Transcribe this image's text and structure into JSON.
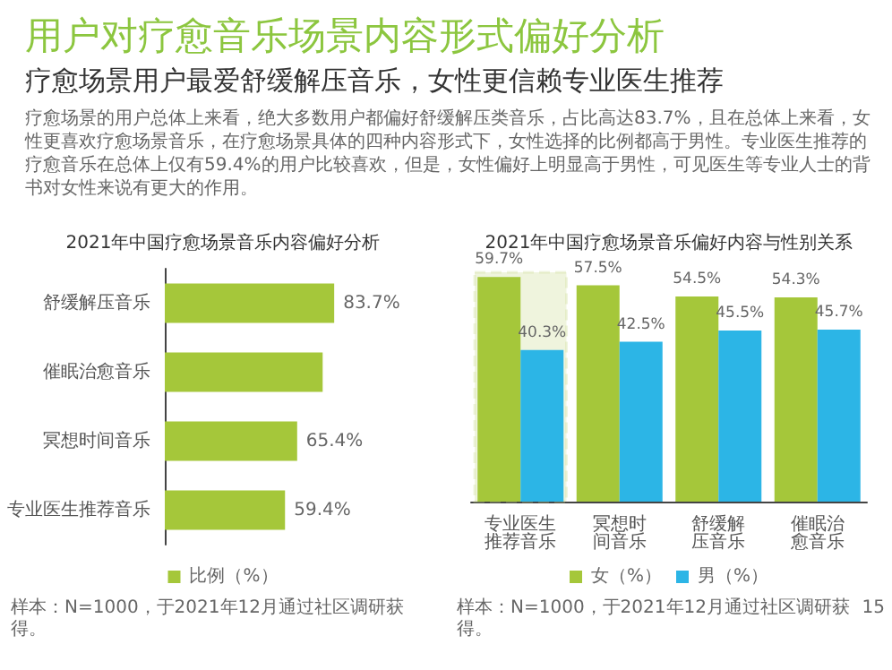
{
  "chart_data": [
    {
      "type": "other",
      "title": "用户对疗愈音乐场景内容形式偏好分析",
      "subtitle": "疗愈场景用户最爱舒缓解压音乐，女性更信赖专业医生推荐",
      "annotations": [
        "疗愈场景的用户总体上来看，绝大多数用户都偏好舒缓解压类音乐，占比高达83.7%，且在总体上来看，女性更喜欢疗愈场景音乐，在疗愈场景具体的四种内容形式下，女性选择的比例都高于男性。专业医生推荐的疗愈音乐在总体上仅有59.4%的用户比较喜欢，但是，女性偏好上明显高于男性，可见医生等专业人士的背书对女性来说有更大的作用。"
      ]
    },
    {
      "type": "bar",
      "orientation": "horizontal",
      "title": "2021年中国疗愈场景音乐内容偏好分析",
      "categories": [
        "舒缓解压音乐",
        "催眠治愈音乐",
        "冥想时间音乐",
        "专业医生推荐音乐"
      ],
      "series": [
        {
          "name": "比例（%）",
          "color": "#a5c73a",
          "values": [
            83.7,
            78,
            65.4,
            59.4
          ],
          "value_labels": [
            "83.7%",
            null,
            "65.4%",
            "59.4%"
          ]
        }
      ],
      "legend": "bottom",
      "tick_labels": "y",
      "annotations": [
        "样本：N=1000，于2021年12月通过社区调研获得。"
      ]
    },
    {
      "type": "bar",
      "title": "2021年中国疗愈场景音乐偏好内容与性别关系",
      "categories": [
        "专业医生推荐音乐",
        "冥想时间音乐",
        "舒缓解压音乐",
        "催眠治愈音乐"
      ],
      "series": [
        {
          "name": "女（%）",
          "color": "#a5c73a",
          "values": [
            59.7,
            57.5,
            54.5,
            54.3
          ],
          "value_labels": [
            "59.7%",
            "57.5%",
            "54.5%",
            "54.3%"
          ]
        },
        {
          "name": "男（%）",
          "color": "#2cb5e6",
          "values": [
            40.3,
            42.5,
            45.5,
            45.7
          ],
          "value_labels": [
            "40.3%",
            "42.5%",
            "45.5%",
            "45.7%"
          ]
        }
      ],
      "bands": [
        {
          "axis": "x",
          "from": "专业医生推荐音乐",
          "to": "专业医生推荐音乐",
          "color": "#c9d98e"
        }
      ],
      "legend": "bottom",
      "tick_labels": "x",
      "annotations": [
        "样本：N=1000，于2021年12月通过社区调研获得。",
        "15"
      ]
    }
  ]
}
